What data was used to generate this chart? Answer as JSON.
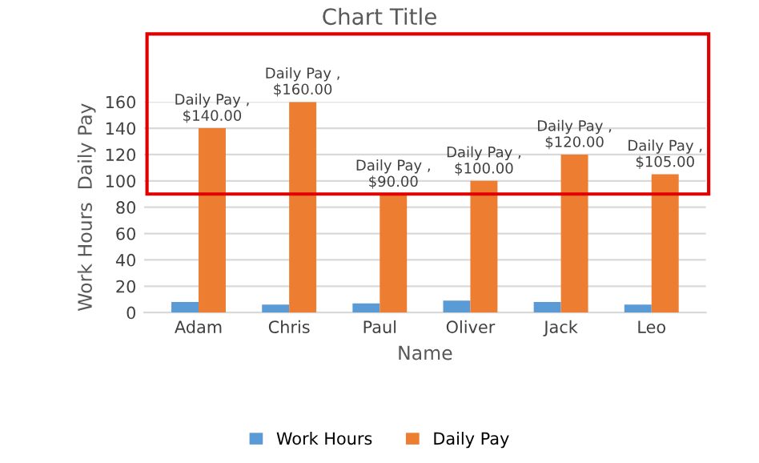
{
  "chart_data": {
    "type": "bar",
    "title": "Chart Title",
    "xlabel": "Name",
    "ylabel": "Work Hours  Daily Pay",
    "categories": [
      "Adam",
      "Chris",
      "Paul",
      "Oliver",
      "Jack",
      "Leo"
    ],
    "series": [
      {
        "name": "Work Hours",
        "color": "#5b9bd5",
        "values": [
          8,
          6,
          7,
          9,
          8,
          6
        ]
      },
      {
        "name": "Daily Pay",
        "color": "#ed7d31",
        "values": [
          140,
          160,
          90,
          100,
          120,
          105
        ],
        "value_labels": [
          "Daily Pay ,\n$140.00",
          "Daily Pay ,\n$160.00",
          "Daily Pay ,\n$90.00",
          "Daily Pay ,\n$100.00",
          "Daily Pay ,\n$120.00",
          "Daily Pay ,\n$105.00"
        ]
      }
    ],
    "ylim": [
      0,
      160
    ],
    "yticks": [
      0,
      20,
      40,
      60,
      80,
      100,
      120,
      140,
      160
    ],
    "grid": "y",
    "legend": "bottom"
  }
}
